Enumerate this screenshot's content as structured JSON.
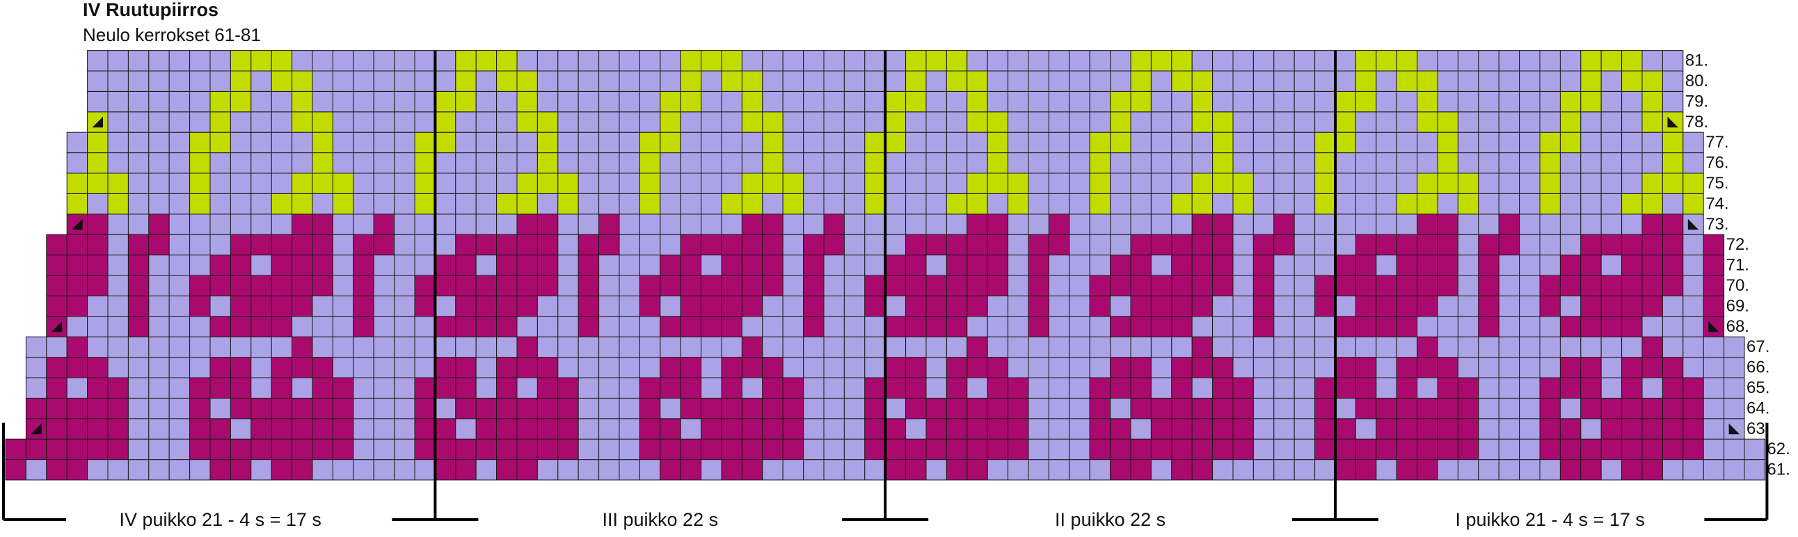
{
  "header": {
    "title": "IV Ruutupiirros",
    "subtitle": "Neulo kerrokset 61-81"
  },
  "row_labels": [
    "61.",
    "62.",
    "63.",
    "64.",
    "65.",
    "66.",
    "67.",
    "68.",
    "69.",
    "70.",
    "71.",
    "72.",
    "73.",
    "74.",
    "75.",
    "76.",
    "77.",
    "78.",
    "79.",
    "80.",
    "81."
  ],
  "sections": [
    "IV puikko 21 - 4 s = 17 s",
    "III puikko 22 s",
    "II puikko 22 s",
    "I puikko 21 - 4 s = 17 s"
  ]
}
